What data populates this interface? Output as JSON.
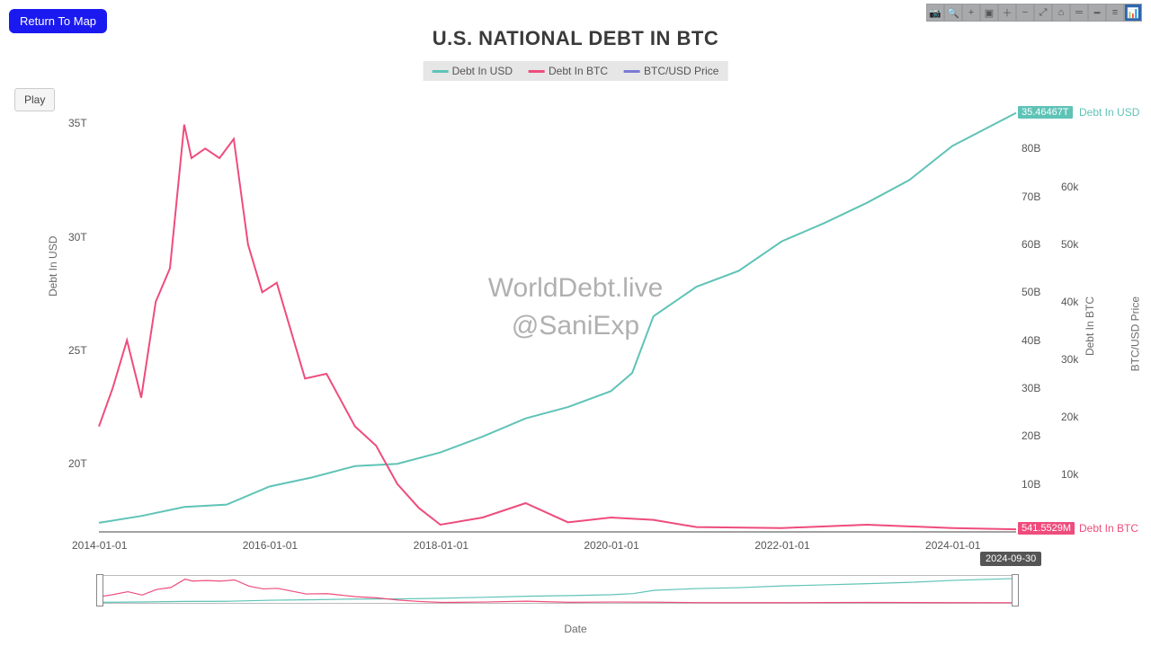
{
  "buttons": {
    "return_to_map": "Return To Map",
    "play": "Play"
  },
  "toolbar_icons": [
    {
      "name": "camera-icon",
      "glyph": "📷"
    },
    {
      "name": "zoom-icon",
      "glyph": "🔍"
    },
    {
      "name": "crosshair-icon",
      "glyph": "+"
    },
    {
      "name": "box-select-icon",
      "glyph": "▣"
    },
    {
      "name": "zoom-in-icon",
      "glyph": "＋"
    },
    {
      "name": "zoom-out-icon",
      "glyph": "−"
    },
    {
      "name": "autoscale-icon",
      "glyph": "⤢"
    },
    {
      "name": "home-icon",
      "glyph": "⌂"
    },
    {
      "name": "spike-icon",
      "glyph": "═"
    },
    {
      "name": "hover-icon",
      "glyph": "━"
    },
    {
      "name": "compare-icon",
      "glyph": "≡"
    },
    {
      "name": "logo-icon",
      "glyph": "📊",
      "active": true
    }
  ],
  "chart": {
    "type": "line",
    "title": "U.S. NATIONAL DEBT IN BTC",
    "title_fontsize": 22,
    "title_color": "#3a3a3a",
    "background_color": "#ffffff",
    "grid_color": "#ececec",
    "watermark_line1": "WorldDebt.live",
    "watermark_line2": "@SaniExp",
    "watermark_color": "#b0b0b0",
    "watermark_fontsize": 30,
    "legend": {
      "background": "#e6e6e6",
      "fontsize": 12,
      "items": [
        {
          "label": "Debt In USD",
          "color": "#5fc3b7"
        },
        {
          "label": "Debt In BTC",
          "color": "#ee4c7c"
        },
        {
          "label": "BTC/USD Price",
          "color": "#7b7bd4"
        }
      ]
    },
    "x_axis": {
      "label": "Date",
      "type": "date",
      "domain": [
        "2014-01-01",
        "2024-09-30"
      ],
      "ticks": [
        "2014-01-01",
        "2016-01-01",
        "2018-01-01",
        "2020-01-01",
        "2022-01-01",
        "2024-01-01"
      ],
      "end_date_marker": "2024-09-30",
      "tick_fontsize": 12,
      "tick_color": "#555555"
    },
    "y_axis_left": {
      "label": "Debt In USD",
      "unit": "T",
      "ticks": [
        20,
        25,
        30,
        35
      ],
      "ylim": [
        17,
        36
      ],
      "label_fontsize": 12,
      "label_color": "#6a6a6a"
    },
    "y_axis_right_a": {
      "label": "Debt In BTC",
      "unit": "B",
      "ticks": [
        10,
        20,
        30,
        40,
        50,
        60,
        70,
        80
      ],
      "ylim": [
        0,
        90
      ],
      "label_fontsize": 12,
      "label_color": "#6a6a6a"
    },
    "y_axis_right_b": {
      "label": "BTC/USD Price",
      "unit": "k",
      "ticks": [
        10,
        20,
        30,
        40,
        50,
        60
      ],
      "ylim": [
        0,
        75
      ],
      "label_fontsize": 12,
      "label_color": "#6a6a6a"
    },
    "series": [
      {
        "name": "Debt In USD",
        "color": "#5fc3b7",
        "line_width": 2,
        "y_axis": "left",
        "end_value": "35.46467T",
        "end_label": "Debt In USD",
        "end_label_color": "#5fc3b7",
        "data": [
          {
            "x": "2014-01-01",
            "y": 17.4
          },
          {
            "x": "2014-07-01",
            "y": 17.7
          },
          {
            "x": "2015-01-01",
            "y": 18.1
          },
          {
            "x": "2015-07-01",
            "y": 18.2
          },
          {
            "x": "2016-01-01",
            "y": 19.0
          },
          {
            "x": "2016-07-01",
            "y": 19.4
          },
          {
            "x": "2017-01-01",
            "y": 19.9
          },
          {
            "x": "2017-07-01",
            "y": 20.0
          },
          {
            "x": "2018-01-01",
            "y": 20.5
          },
          {
            "x": "2018-07-01",
            "y": 21.2
          },
          {
            "x": "2019-01-01",
            "y": 22.0
          },
          {
            "x": "2019-07-01",
            "y": 22.5
          },
          {
            "x": "2020-01-01",
            "y": 23.2
          },
          {
            "x": "2020-04-01",
            "y": 24.0
          },
          {
            "x": "2020-07-01",
            "y": 26.5
          },
          {
            "x": "2021-01-01",
            "y": 27.8
          },
          {
            "x": "2021-07-01",
            "y": 28.5
          },
          {
            "x": "2022-01-01",
            "y": 29.8
          },
          {
            "x": "2022-07-01",
            "y": 30.6
          },
          {
            "x": "2023-01-01",
            "y": 31.5
          },
          {
            "x": "2023-07-01",
            "y": 32.5
          },
          {
            "x": "2024-01-01",
            "y": 34.0
          },
          {
            "x": "2024-09-30",
            "y": 35.46
          }
        ]
      },
      {
        "name": "Debt In BTC",
        "color": "#ee4c7c",
        "line_width": 2,
        "y_axis": "right_a",
        "end_value": "541.5529M",
        "end_label": "Debt In BTC",
        "end_label_color": "#ee4c7c",
        "data": [
          {
            "x": "2014-01-01",
            "y": 22
          },
          {
            "x": "2014-03-01",
            "y": 30
          },
          {
            "x": "2014-05-01",
            "y": 40
          },
          {
            "x": "2014-07-01",
            "y": 28
          },
          {
            "x": "2014-09-01",
            "y": 48
          },
          {
            "x": "2014-11-01",
            "y": 55
          },
          {
            "x": "2015-01-01",
            "y": 85
          },
          {
            "x": "2015-02-01",
            "y": 78
          },
          {
            "x": "2015-04-01",
            "y": 80
          },
          {
            "x": "2015-06-01",
            "y": 78
          },
          {
            "x": "2015-08-01",
            "y": 82
          },
          {
            "x": "2015-10-01",
            "y": 60
          },
          {
            "x": "2015-12-01",
            "y": 50
          },
          {
            "x": "2016-02-01",
            "y": 52
          },
          {
            "x": "2016-06-01",
            "y": 32
          },
          {
            "x": "2016-09-01",
            "y": 33
          },
          {
            "x": "2017-01-01",
            "y": 22
          },
          {
            "x": "2017-04-01",
            "y": 18
          },
          {
            "x": "2017-07-01",
            "y": 10
          },
          {
            "x": "2017-10-01",
            "y": 5
          },
          {
            "x": "2018-01-01",
            "y": 1.5
          },
          {
            "x": "2018-07-01",
            "y": 3
          },
          {
            "x": "2019-01-01",
            "y": 6
          },
          {
            "x": "2019-07-01",
            "y": 2
          },
          {
            "x": "2020-01-01",
            "y": 3
          },
          {
            "x": "2020-07-01",
            "y": 2.5
          },
          {
            "x": "2021-01-01",
            "y": 1
          },
          {
            "x": "2022-01-01",
            "y": 0.8
          },
          {
            "x": "2023-01-01",
            "y": 1.5
          },
          {
            "x": "2024-01-01",
            "y": 0.8
          },
          {
            "x": "2024-09-30",
            "y": 0.54
          }
        ]
      }
    ]
  }
}
